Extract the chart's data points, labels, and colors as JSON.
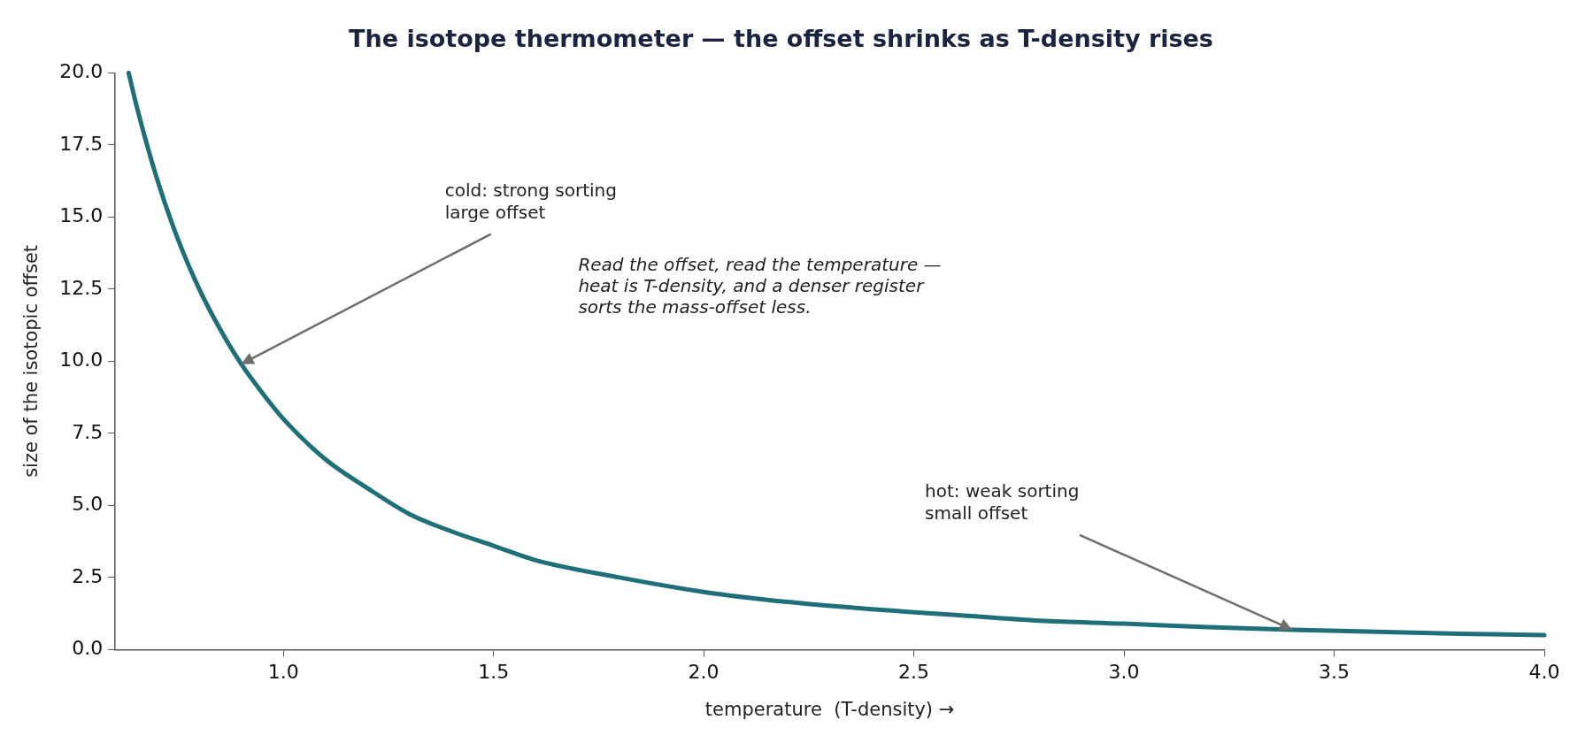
{
  "chart_data": {
    "type": "line",
    "title": "The isotope thermometer — the offset shrinks as T-density rises",
    "xlabel": "temperature  (T-density) →",
    "ylabel": "size of the isotopic offset",
    "x": [
      0.632,
      0.65,
      0.7,
      0.75,
      0.8,
      0.85,
      0.9,
      0.95,
      1.0,
      1.1,
      1.2,
      1.3,
      1.4,
      1.5,
      1.6,
      1.8,
      2.0,
      2.2,
      2.4,
      2.6,
      2.8,
      3.0,
      3.2,
      3.4,
      3.6,
      3.8,
      4.0
    ],
    "series": [
      {
        "color": "#1f6f78",
        "values": [
          20.0,
          18.9,
          16.3,
          14.2,
          12.5,
          11.1,
          9.9,
          8.9,
          8.0,
          6.6,
          5.6,
          4.7,
          4.1,
          3.6,
          3.1,
          2.5,
          2.0,
          1.65,
          1.4,
          1.2,
          1.0,
          0.9,
          0.78,
          0.69,
          0.62,
          0.55,
          0.5
        ]
      }
    ],
    "xlim": [
      0.6,
      4.0
    ],
    "xticks": [
      {
        "value": 1,
        "label": "1.0"
      },
      1.5,
      {
        "value": 2,
        "label": "2.0"
      },
      2.5,
      {
        "value": 3,
        "label": "3.0"
      },
      3.5,
      {
        "value": 4,
        "label": "4.0"
      }
    ],
    "ylim": [
      0,
      20
    ],
    "yticks": [
      {
        "value": 0,
        "label": "0.0"
      },
      2.5,
      {
        "value": 5,
        "label": "5.0"
      },
      7.5,
      {
        "value": 10,
        "label": "10.0"
      },
      12.5,
      {
        "value": 15,
        "label": "15.0"
      },
      17.5,
      {
        "value": 20,
        "label": "20.0"
      }
    ],
    "annotations": [
      {
        "text": "cold: strong sorting\nlarge offset",
        "x": 0.9,
        "y": 9.9
      },
      {
        "text": "hot: weak sorting\nsmall offset",
        "x": 3.4,
        "y": 0.69
      },
      "Read the offset, read the temperature —\nheat is T-density, and a denser register\nsorts the mass-offset less."
    ],
    "grid": false,
    "legend": false,
    "marker": "none",
    "line_style": "solid"
  }
}
